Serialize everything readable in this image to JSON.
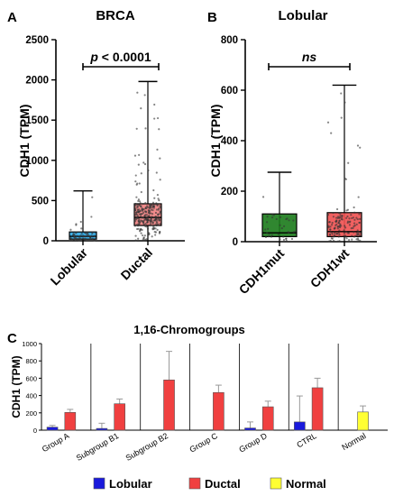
{
  "chart_data": [
    {
      "panel_label": "A",
      "type": "box",
      "title": "BRCA",
      "ylabel": "CDH1 (TPM)",
      "ylim": [
        0,
        2500
      ],
      "yticks": [
        0,
        500,
        1000,
        1500,
        2000,
        2500
      ],
      "categories": [
        "Lobular",
        "Ductal"
      ],
      "colors": [
        "#2aa7e6",
        "#f08080"
      ],
      "boxes": [
        {
          "name": "Lobular",
          "min": 0,
          "q1": 20,
          "median": 55,
          "q3": 110,
          "max": 620
        },
        {
          "name": "Ductal",
          "min": 0,
          "q1": 190,
          "median": 290,
          "q3": 460,
          "max": 1980
        }
      ],
      "annotation": {
        "text_italic": "p",
        "text_rest": " < 0.0001"
      }
    },
    {
      "panel_label": "B",
      "type": "box",
      "title": "Lobular",
      "ylabel": "CDH1 (TPM)",
      "ylim": [
        0,
        800
      ],
      "yticks": [
        0,
        200,
        400,
        600,
        800
      ],
      "categories": [
        "CDH1mut",
        "CDH1wt"
      ],
      "colors": [
        "#1a7a1a",
        "#f05050"
      ],
      "boxes": [
        {
          "name": "CDH1mut",
          "min": 0,
          "q1": 20,
          "median": 35,
          "q3": 110,
          "max": 275
        },
        {
          "name": "CDH1wt",
          "min": 0,
          "q1": 20,
          "median": 40,
          "q3": 115,
          "max": 620
        }
      ],
      "annotation": {
        "text_italic": "ns",
        "text_rest": ""
      }
    },
    {
      "panel_label": "C",
      "type": "bar",
      "title": "1,16-Chromogroups",
      "ylabel": "CDH1 (TPM)",
      "ylim": [
        0,
        1000
      ],
      "yticks": [
        0,
        200,
        400,
        600,
        800,
        1000
      ],
      "groups": [
        "Group A",
        "Subgroup B1",
        "Subgroup B2",
        "Group C",
        "Group D",
        "CTRL",
        "Normal"
      ],
      "series": [
        {
          "name": "Lobular",
          "color": "#1a1adc",
          "values": [
            35,
            20,
            null,
            null,
            25,
            95,
            null
          ],
          "errors": [
            20,
            60,
            null,
            null,
            70,
            300,
            null
          ]
        },
        {
          "name": "Ductal",
          "color": "#f04040",
          "values": [
            205,
            305,
            580,
            435,
            270,
            490,
            null
          ],
          "errors": [
            35,
            55,
            330,
            85,
            65,
            110,
            null
          ]
        },
        {
          "name": "Normal",
          "color": "#ffff33",
          "values": [
            null,
            null,
            null,
            null,
            null,
            null,
            210
          ],
          "errors": [
            null,
            null,
            null,
            null,
            null,
            null,
            70
          ]
        }
      ]
    }
  ]
}
